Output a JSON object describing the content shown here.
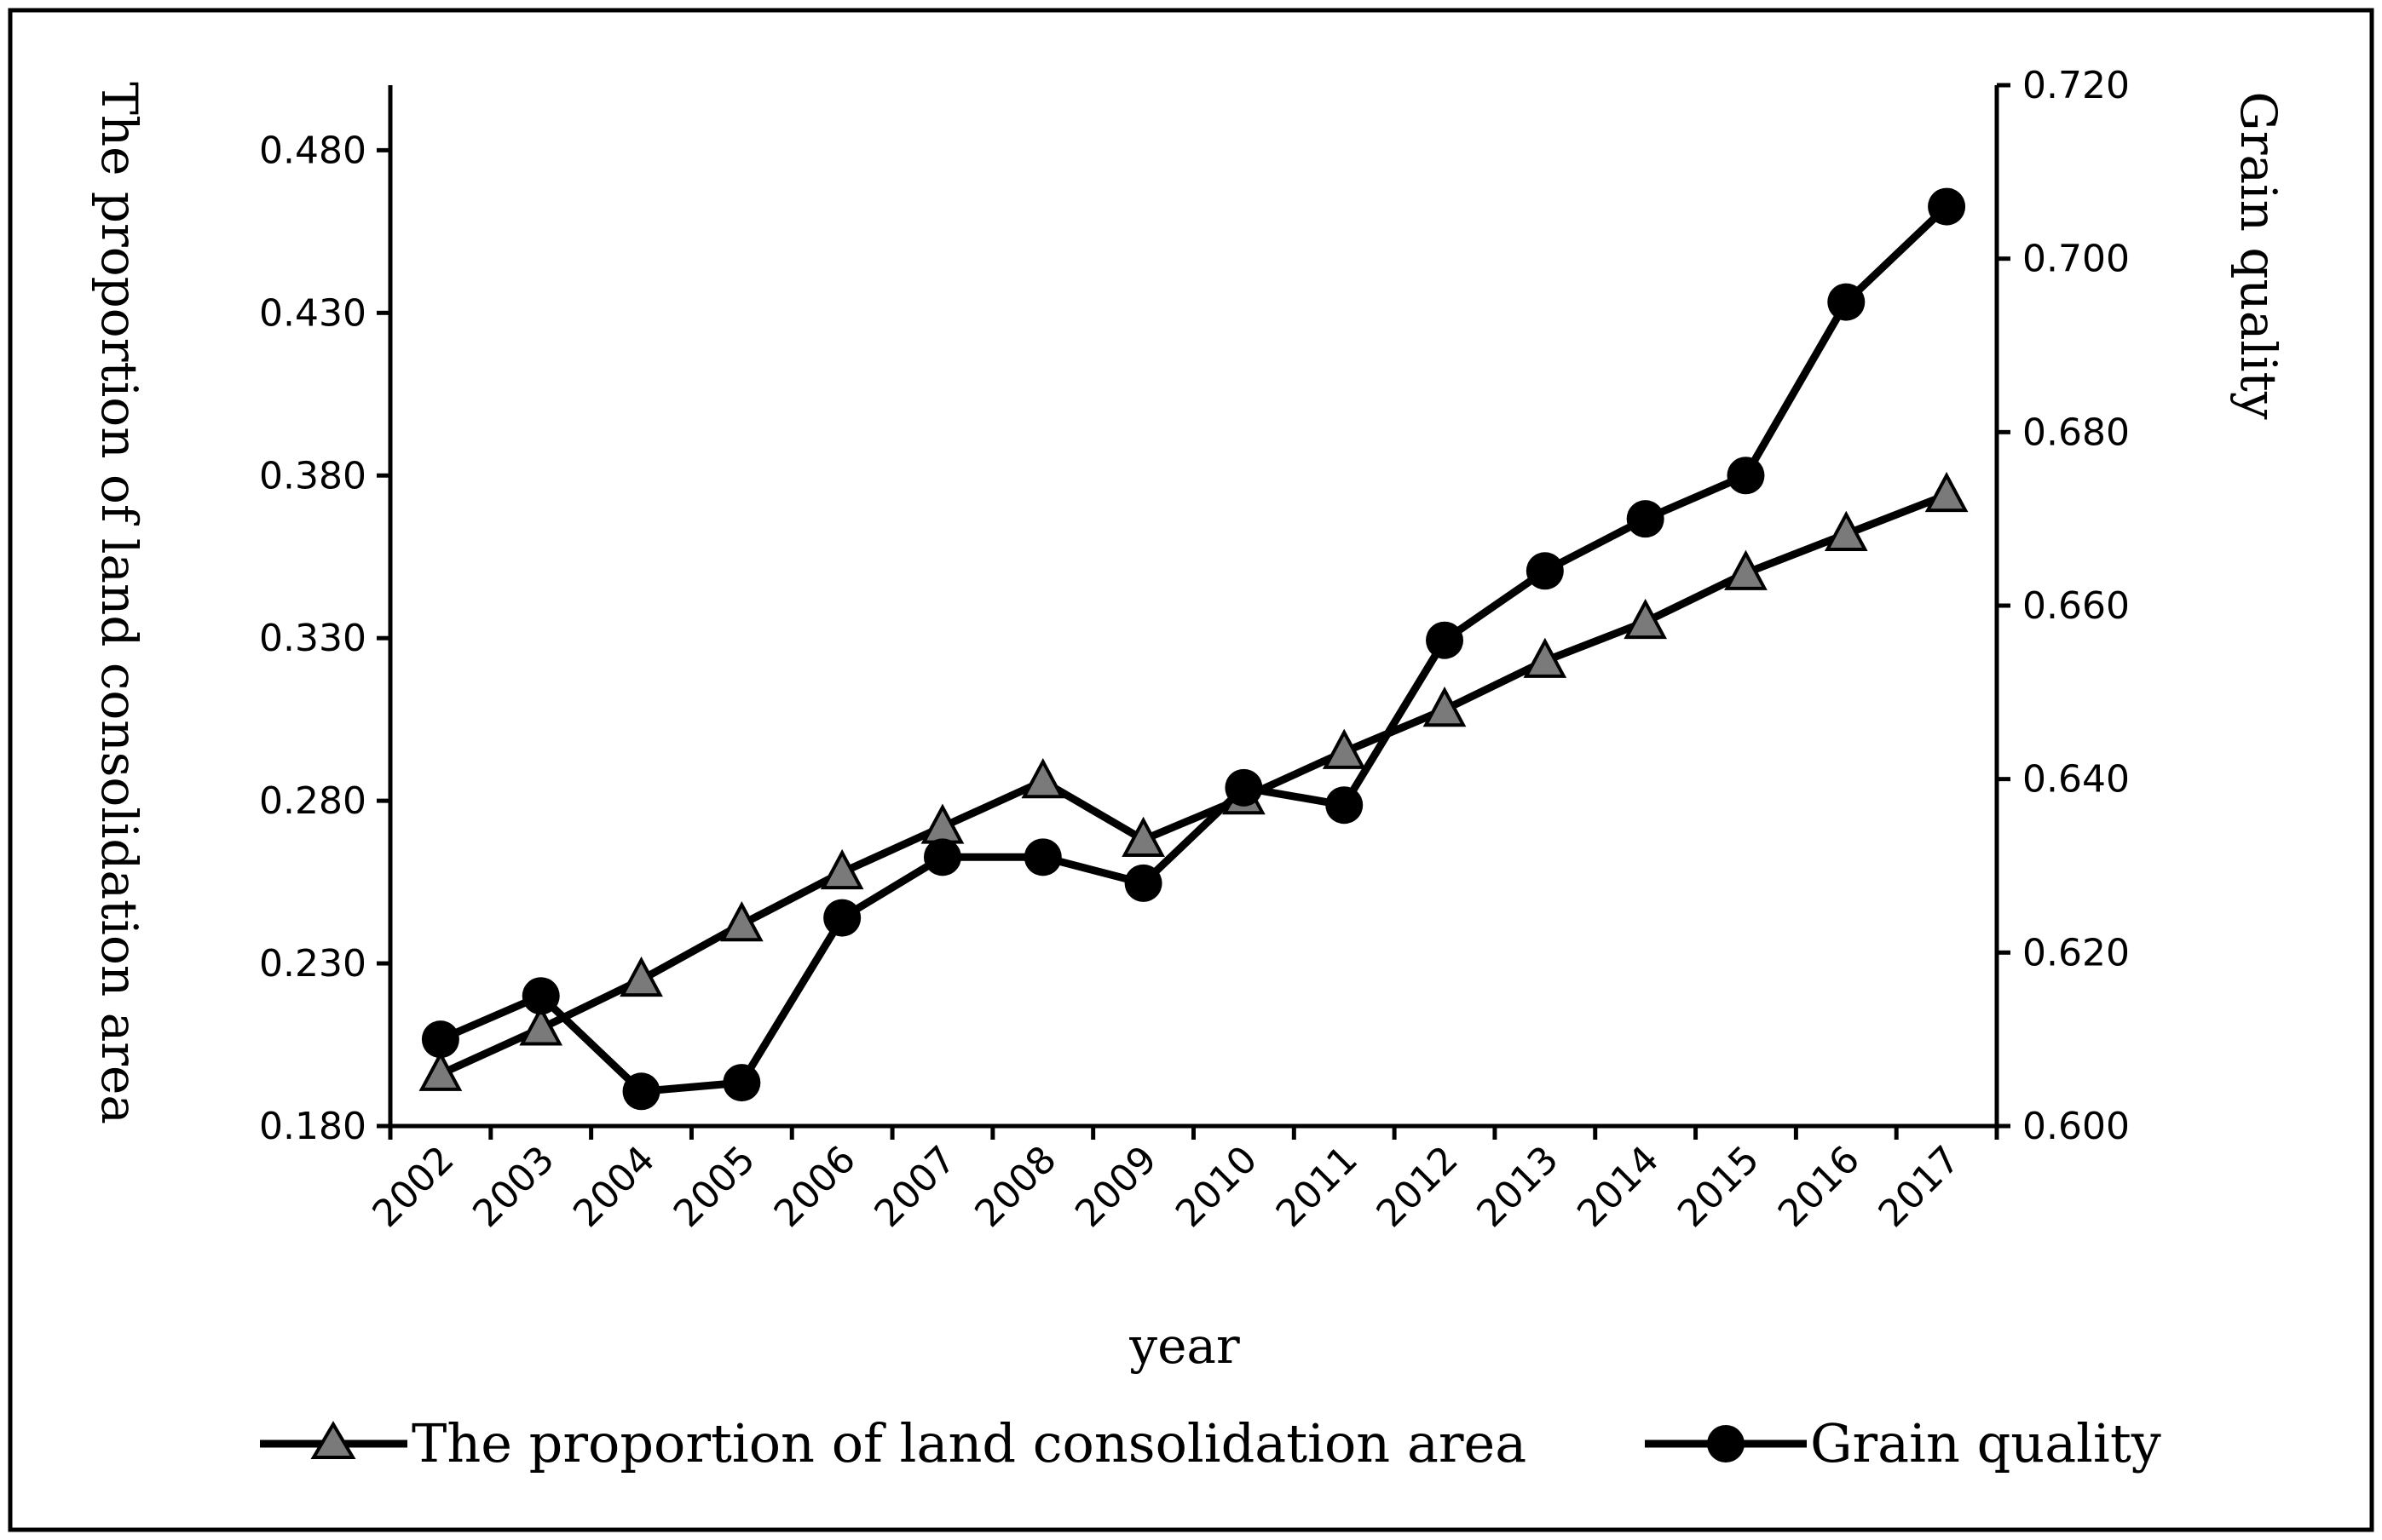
{
  "chart_data": {
    "type": "line",
    "categories": [
      "2002",
      "2003",
      "2004",
      "2005",
      "2006",
      "2007",
      "2008",
      "2009",
      "2010",
      "2011",
      "2012",
      "2013",
      "2014",
      "2015",
      "2016",
      "2017"
    ],
    "series": [
      {
        "name": "The proportion of land consolidation area",
        "axis": "left",
        "marker": "triangle",
        "marker_color": "#7a7a7a",
        "values": [
          0.196,
          0.21,
          0.225,
          0.242,
          0.258,
          0.272,
          0.286,
          0.268,
          0.281,
          0.295,
          0.308,
          0.323,
          0.335,
          0.35,
          0.362,
          0.374
        ]
      },
      {
        "name": "Grain quality",
        "axis": "right",
        "marker": "circle",
        "marker_color": "#000000",
        "values": [
          0.61,
          0.615,
          0.604,
          0.605,
          0.624,
          0.631,
          0.631,
          0.628,
          0.639,
          0.637,
          0.656,
          0.664,
          0.67,
          0.675,
          0.695,
          0.706
        ]
      }
    ],
    "y_left": {
      "label": "The proportion of land consolidation area",
      "ylim": [
        0.18,
        0.5
      ],
      "ticks": [
        0.18,
        0.23,
        0.28,
        0.33,
        0.38,
        0.43,
        0.48
      ],
      "tick_labels": [
        "0.180",
        "0.230",
        "0.280",
        "0.330",
        "0.380",
        "0.430",
        "0.480"
      ]
    },
    "y_right": {
      "label": "Grain quality",
      "ylim": [
        0.6,
        0.72
      ],
      "ticks": [
        0.6,
        0.62,
        0.64,
        0.66,
        0.68,
        0.7,
        0.72
      ],
      "tick_labels": [
        "0.600",
        "0.620",
        "0.640",
        "0.660",
        "0.680",
        "0.700",
        "0.720"
      ]
    },
    "xlabel": "year",
    "legend_position": "bottom",
    "grid": false
  }
}
